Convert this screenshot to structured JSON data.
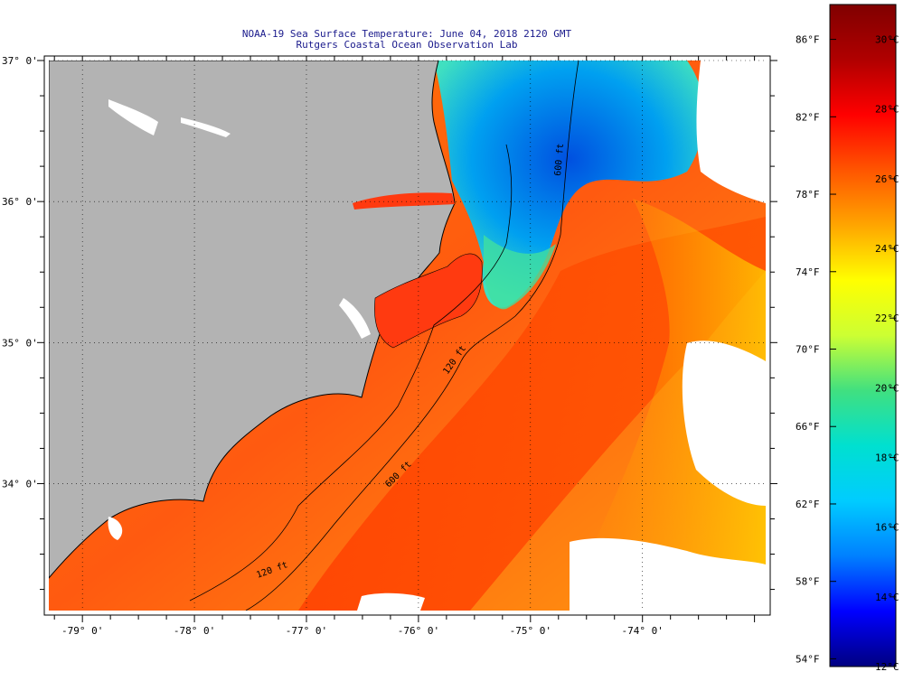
{
  "title": "NOAA-19 Sea Surface Temperature:  June 04, 2018 2120 GMT",
  "subtitle": "Rutgers Coastal Ocean Observation Lab",
  "map": {
    "lon_labels": [
      "-79° 0'",
      "-78° 0'",
      "-77° 0'",
      "-76° 0'",
      "-75° 0'",
      "-74° 0'"
    ],
    "lon_values": [
      -79,
      -78,
      -77,
      -76,
      -75,
      -74
    ],
    "lat_labels": [
      "37° 0'",
      "36° 0'",
      "35° 0'",
      "34° 0'"
    ],
    "lat_values": [
      37,
      36,
      35,
      34
    ],
    "lon_range": [
      -79.3,
      -72.9
    ],
    "lat_range": [
      33.1,
      37.0
    ],
    "isobath_labels": [
      "120 ft",
      "120 ft",
      "600 ft",
      "600 ft"
    ],
    "land_color": "#b3b3b3",
    "cloud_color": "#ffffff"
  },
  "colorbar": {
    "f_labels": [
      "86°F",
      "82°F",
      "78°F",
      "74°F",
      "70°F",
      "66°F",
      "62°F",
      "58°F",
      "54°F"
    ],
    "c_labels": [
      "30°C",
      "28°C",
      "26°C",
      "24°C",
      "22°C",
      "20°C",
      "18°C",
      "16°C",
      "14°C",
      "12°C"
    ],
    "c_range": [
      12,
      31
    ],
    "colors": [
      "#000080",
      "#0000ff",
      "#0080ff",
      "#00ccff",
      "#00e0d0",
      "#40e080",
      "#ccff33",
      "#ffff00",
      "#ffa500",
      "#ff5500",
      "#ff0000",
      "#b00000",
      "#800000"
    ]
  }
}
